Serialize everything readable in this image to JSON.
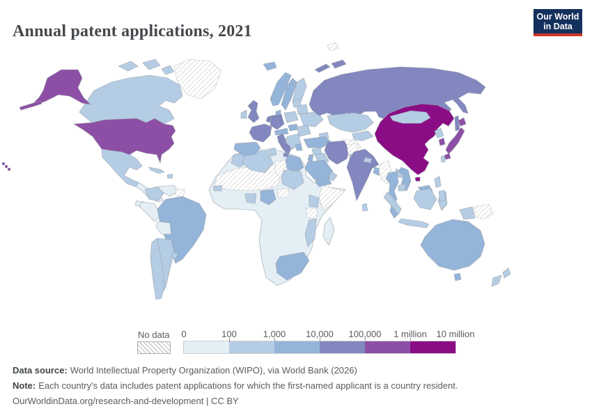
{
  "header": {
    "title": "Annual patent applications, 2021"
  },
  "logo": {
    "line1": "Our World",
    "line2": "in Data",
    "bg": "#14305c",
    "accent": "#d13425"
  },
  "legend": {
    "no_data_label": "No data",
    "tick_labels": [
      "0",
      "100",
      "1,000",
      "10,000",
      "100,000",
      "1 million",
      "10 million"
    ]
  },
  "footer": {
    "source_label": "Data source:",
    "source_text": "World Intellectual Property Organization (WIPO), via World Bank (2026)",
    "note_label": "Note:",
    "note_text": "Each country's data includes patent applications for which the first-named applicant is a country resident.",
    "citation": "OurWorldinData.org/research-and-development | CC BY"
  },
  "chart_data": {
    "type": "heatmap",
    "subtype": "world-choropleth",
    "title": "Annual patent applications, 2021",
    "unit": "patent applications",
    "legend_position": "bottom",
    "scale": "log-binned",
    "bins": [
      {
        "range": "0–100",
        "color": "#e4eef5"
      },
      {
        "range": "100–1,000",
        "color": "#b5cde4"
      },
      {
        "range": "1,000–10,000",
        "color": "#95b4d9"
      },
      {
        "range": "10,000–100,000",
        "color": "#8287bf"
      },
      {
        "range": "100,000–1 million",
        "color": "#8d4fa5"
      },
      {
        "range": "1 million–10 million",
        "color": "#8b0d86"
      }
    ],
    "no_data": {
      "label": "No data",
      "pattern": "diagonal-hatch"
    },
    "regions": {
      "alaska": 4,
      "aleutians": 4,
      "hawaii": 4,
      "usa": 4,
      "canada": 1,
      "arctic_islands_a": 1,
      "arctic_islands_b": 1,
      "arctic_islands_c": 1,
      "greenland": "nodata",
      "iceland": 2,
      "mexico": 1,
      "central_america": 0,
      "cuba": 1,
      "hispaniola": 1,
      "colombia": 1,
      "venezuela": 0,
      "guyana_suriname": "nodata",
      "ecuador": 0,
      "peru": 0,
      "brazil": 2,
      "bolivia": 0,
      "chile": 1,
      "argentina": 1,
      "uruguay": 1,
      "norway": 2,
      "sweden": 2,
      "finland": 1,
      "denmark": 2,
      "uk": 3,
      "ireland": 1,
      "france": 3,
      "iberia": 2,
      "germany": 3,
      "benelux": 3,
      "italy": 3,
      "sicily": 3,
      "alps": 2,
      "poland": 1,
      "hungary": 2,
      "balkans": 1,
      "greece": 2,
      "romania_bulgaria": 1,
      "ukraine": 1,
      "belarus": 1,
      "baltics": 1,
      "russia": 3,
      "sakhalin": 3,
      "novaya_zemlya_a": 3,
      "novaya_zemlya_b": 3,
      "svalbard": "nodata",
      "kazakhstan": 1,
      "uzbekistan": 1,
      "turkmenistan": "nodata",
      "caucasus": 1,
      "turkey": 2,
      "syria": 1,
      "iraq": 1,
      "levant": 2,
      "iran": 3,
      "afghanistan": "nodata",
      "pakistan": 1,
      "saudi_arabia": 2,
      "yemen": 2,
      "oman": 1,
      "india": 3,
      "nepal": 1,
      "bangladesh": 2,
      "sri_lanka": 1,
      "china": 5,
      "hainan": 5,
      "mongolia": 1,
      "north_korea": 1,
      "south_korea": 4,
      "japan": 4,
      "hokkaido": 4,
      "kyushu": 4,
      "taiwan": 1,
      "myanmar": "nodata",
      "thailand": 2,
      "laos": 1,
      "vietnam": 2,
      "cambodia": 1,
      "malaysia": 2,
      "malaysia_borneo": 2,
      "sumatra": 1,
      "java": 1,
      "kalimantan": 1,
      "sulawesi": 1,
      "west_papua": 1,
      "papua_new_guinea": "nodata",
      "philippines_north": 1,
      "philippines_south": 1,
      "australia": 2,
      "tasmania": 2,
      "nz_north": 1,
      "nz_south": 1,
      "africa_base": 0,
      "sahara": "nodata",
      "libya": "nodata",
      "central_african_republic": "nodata",
      "morocco": 1,
      "algeria": 1,
      "tunisia": 1,
      "egypt": 2,
      "sudan": 1,
      "senegal": 1,
      "ghana_ivory_coast": 1,
      "nigeria": 2,
      "somalia": "nodata",
      "kenya": 1,
      "tanzania": "nodata",
      "mozambique": 1,
      "south_africa": 2,
      "madagascar": 0
    }
  }
}
